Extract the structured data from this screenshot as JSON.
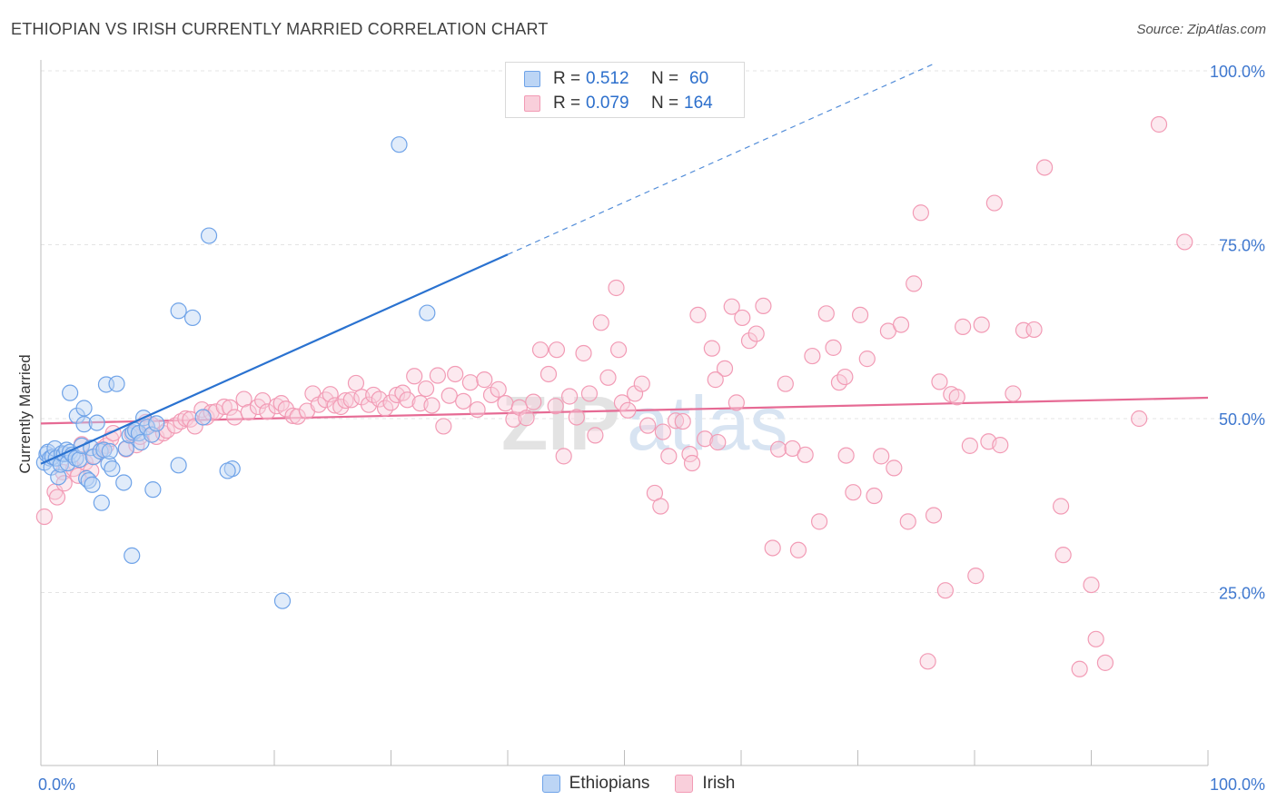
{
  "header": {
    "title": "ETHIOPIAN VS IRISH CURRENTLY MARRIED CORRELATION CHART",
    "source": "Source: ZipAtlas.com"
  },
  "watermark": "ZIPatlas",
  "stats_legend": {
    "rows": [
      {
        "r_label": "R =",
        "r_value": "0.512",
        "n_label": "N =",
        "n_value": "60",
        "color": "#6fa3e8"
      },
      {
        "r_label": "R =",
        "r_value": "0.079",
        "n_label": "N =",
        "n_value": "164",
        "color": "#f29bb5"
      }
    ],
    "value_color": "#2c6fcc"
  },
  "chart_data": {
    "type": "scatter",
    "xlabel": "",
    "ylabel": "Currently Married",
    "xlim": [
      0,
      100
    ],
    "ylim": [
      0,
      100
    ],
    "x_tick_labels": [
      {
        "value": 0,
        "label": "0.0%"
      },
      {
        "value": 100,
        "label": "100.0%"
      }
    ],
    "y_tick_labels": [
      {
        "value": 25,
        "label": "25.0%"
      },
      {
        "value": 50,
        "label": "50.0%"
      },
      {
        "value": 75,
        "label": "75.0%"
      },
      {
        "value": 100,
        "label": "100.0%"
      }
    ],
    "grid": true,
    "legend_position": "bottom-center",
    "series": [
      {
        "name": "Ethiopians",
        "color": "#6fa3e8",
        "fill": "#bcd5f5",
        "trend": {
          "x": [
            0,
            40
          ],
          "y": [
            43.5,
            73.6
          ],
          "color": "#2a72d0",
          "extension_to_x": 76.5,
          "extension_y": 101.0
        },
        "points": [
          [
            0.3,
            43.7
          ],
          [
            0.5,
            44.9
          ],
          [
            0.6,
            45.2
          ],
          [
            0.8,
            44.3
          ],
          [
            0.9,
            43.0
          ],
          [
            1.0,
            44.5
          ],
          [
            1.2,
            45.7
          ],
          [
            1.3,
            44.3
          ],
          [
            1.5,
            41.6
          ],
          [
            1.7,
            43.4
          ],
          [
            1.8,
            45.0
          ],
          [
            2.0,
            44.9
          ],
          [
            2.2,
            45.5
          ],
          [
            2.3,
            43.6
          ],
          [
            2.5,
            45.2
          ],
          [
            2.7,
            44.8
          ],
          [
            2.5,
            53.7
          ],
          [
            3.0,
            44.3
          ],
          [
            3.1,
            50.4
          ],
          [
            3.3,
            44.1
          ],
          [
            3.5,
            46.1
          ],
          [
            3.7,
            51.5
          ],
          [
            3.7,
            49.2
          ],
          [
            3.9,
            41.4
          ],
          [
            4.1,
            41.1
          ],
          [
            4.3,
            45.8
          ],
          [
            4.4,
            40.5
          ],
          [
            4.5,
            44.5
          ],
          [
            4.8,
            49.4
          ],
          [
            5.1,
            45.3
          ],
          [
            5.2,
            37.9
          ],
          [
            5.4,
            45.5
          ],
          [
            5.6,
            54.9
          ],
          [
            5.8,
            43.5
          ],
          [
            5.9,
            45.3
          ],
          [
            6.1,
            42.8
          ],
          [
            6.5,
            55.0
          ],
          [
            7.1,
            40.8
          ],
          [
            7.3,
            45.7
          ],
          [
            7.6,
            47.6
          ],
          [
            7.8,
            30.3
          ],
          [
            7.9,
            48.0
          ],
          [
            8.1,
            48.3
          ],
          [
            8.4,
            47.9
          ],
          [
            8.6,
            46.6
          ],
          [
            8.8,
            50.1
          ],
          [
            9.1,
            48.8
          ],
          [
            9.5,
            47.7
          ],
          [
            9.6,
            39.8
          ],
          [
            9.9,
            49.3
          ],
          [
            11.8,
            43.3
          ],
          [
            11.8,
            65.5
          ],
          [
            13.0,
            64.5
          ],
          [
            13.9,
            50.2
          ],
          [
            14.4,
            76.3
          ],
          [
            16.4,
            42.8
          ],
          [
            20.7,
            23.8
          ],
          [
            30.7,
            89.4
          ],
          [
            33.1,
            65.2
          ],
          [
            16.0,
            42.5
          ]
        ]
      },
      {
        "name": "Irish",
        "color": "#f29bb5",
        "fill": "#f9cfdb",
        "trend": {
          "x": [
            0,
            100
          ],
          "y": [
            49.3,
            53.0
          ],
          "color": "#e66a94"
        },
        "points": [
          [
            0.3,
            35.9
          ],
          [
            1.2,
            39.5
          ],
          [
            1.4,
            38.7
          ],
          [
            1.9,
            42.3
          ],
          [
            2.0,
            40.7
          ],
          [
            2.8,
            42.8
          ],
          [
            3.2,
            41.8
          ],
          [
            3.5,
            46.3
          ],
          [
            3.8,
            43.7
          ],
          [
            4.3,
            42.5
          ],
          [
            4.6,
            44.6
          ],
          [
            5.2,
            45.6
          ],
          [
            5.6,
            46.1
          ],
          [
            6.0,
            47.1
          ],
          [
            6.2,
            47.9
          ],
          [
            7.3,
            45.6
          ],
          [
            7.8,
            47.8
          ],
          [
            8.2,
            46.2
          ],
          [
            8.5,
            47.4
          ],
          [
            9.0,
            49.5
          ],
          [
            9.5,
            49.1
          ],
          [
            9.9,
            47.4
          ],
          [
            10.5,
            47.9
          ],
          [
            10.8,
            48.3
          ],
          [
            11.5,
            49.0
          ],
          [
            12.0,
            49.6
          ],
          [
            12.4,
            50.0
          ],
          [
            12.8,
            49.9
          ],
          [
            13.2,
            48.9
          ],
          [
            13.8,
            51.3
          ],
          [
            14.2,
            50.2
          ],
          [
            14.6,
            50.9
          ],
          [
            15.0,
            51.0
          ],
          [
            15.7,
            51.7
          ],
          [
            16.2,
            51.6
          ],
          [
            16.6,
            50.2
          ],
          [
            17.4,
            52.8
          ],
          [
            17.8,
            50.9
          ],
          [
            18.6,
            51.7
          ],
          [
            19.0,
            52.6
          ],
          [
            19.4,
            51.0
          ],
          [
            20.2,
            51.8
          ],
          [
            20.6,
            52.2
          ],
          [
            21.0,
            51.4
          ],
          [
            21.6,
            50.4
          ],
          [
            22.0,
            50.3
          ],
          [
            22.8,
            51.1
          ],
          [
            23.3,
            53.6
          ],
          [
            23.8,
            52.0
          ],
          [
            24.4,
            52.7
          ],
          [
            24.8,
            53.5
          ],
          [
            25.2,
            51.9
          ],
          [
            25.7,
            51.7
          ],
          [
            26.1,
            52.6
          ],
          [
            26.6,
            52.7
          ],
          [
            27.0,
            55.1
          ],
          [
            27.5,
            53.1
          ],
          [
            28.1,
            52.0
          ],
          [
            28.5,
            53.4
          ],
          [
            29.0,
            52.8
          ],
          [
            29.5,
            51.5
          ],
          [
            30.0,
            52.3
          ],
          [
            30.5,
            53.4
          ],
          [
            31.0,
            53.7
          ],
          [
            31.4,
            52.7
          ],
          [
            32.0,
            56.1
          ],
          [
            32.5,
            52.2
          ],
          [
            33.0,
            54.3
          ],
          [
            33.5,
            51.9
          ],
          [
            34.0,
            56.2
          ],
          [
            34.5,
            48.9
          ],
          [
            35.0,
            53.3
          ],
          [
            35.5,
            56.4
          ],
          [
            36.2,
            52.5
          ],
          [
            36.8,
            55.2
          ],
          [
            37.4,
            51.3
          ],
          [
            38.0,
            55.6
          ],
          [
            38.6,
            53.4
          ],
          [
            39.2,
            54.2
          ],
          [
            39.8,
            52.2
          ],
          [
            40.5,
            49.9
          ],
          [
            41.0,
            51.6
          ],
          [
            41.6,
            50.1
          ],
          [
            42.2,
            52.4
          ],
          [
            42.8,
            59.9
          ],
          [
            43.5,
            56.4
          ],
          [
            44.1,
            51.8
          ],
          [
            44.8,
            44.6
          ],
          [
            45.3,
            53.2
          ],
          [
            45.9,
            50.2
          ],
          [
            46.5,
            59.4
          ],
          [
            47.0,
            53.6
          ],
          [
            47.5,
            47.6
          ],
          [
            48.0,
            63.8
          ],
          [
            48.6,
            55.9
          ],
          [
            49.3,
            68.8
          ],
          [
            49.8,
            52.3
          ],
          [
            50.3,
            51.2
          ],
          [
            50.9,
            53.6
          ],
          [
            51.5,
            55.0
          ],
          [
            52.0,
            49.0
          ],
          [
            52.6,
            39.3
          ],
          [
            53.3,
            48.1
          ],
          [
            53.8,
            44.6
          ],
          [
            54.4,
            49.7
          ],
          [
            55.0,
            49.6
          ],
          [
            55.6,
            44.9
          ],
          [
            56.3,
            64.9
          ],
          [
            56.9,
            47.1
          ],
          [
            57.5,
            60.1
          ],
          [
            58.0,
            46.6
          ],
          [
            58.6,
            57.2
          ],
          [
            59.2,
            66.1
          ],
          [
            59.6,
            52.3
          ],
          [
            60.1,
            64.5
          ],
          [
            60.7,
            61.2
          ],
          [
            61.3,
            62.2
          ],
          [
            61.9,
            66.2
          ],
          [
            62.7,
            31.4
          ],
          [
            63.2,
            45.6
          ],
          [
            63.8,
            55.0
          ],
          [
            64.4,
            45.7
          ],
          [
            64.9,
            31.1
          ],
          [
            65.5,
            44.8
          ],
          [
            66.1,
            59.0
          ],
          [
            66.7,
            35.2
          ],
          [
            67.3,
            65.1
          ],
          [
            67.9,
            60.2
          ],
          [
            68.4,
            55.2
          ],
          [
            69.0,
            44.7
          ],
          [
            69.6,
            39.4
          ],
          [
            70.2,
            64.9
          ],
          [
            70.8,
            58.6
          ],
          [
            71.4,
            38.9
          ],
          [
            72.0,
            44.6
          ],
          [
            72.6,
            62.6
          ],
          [
            73.1,
            42.9
          ],
          [
            73.7,
            63.5
          ],
          [
            74.3,
            35.2
          ],
          [
            74.8,
            69.4
          ],
          [
            75.4,
            79.6
          ],
          [
            76.0,
            15.1
          ],
          [
            76.5,
            36.1
          ],
          [
            77.0,
            55.3
          ],
          [
            77.5,
            25.3
          ],
          [
            78.0,
            53.5
          ],
          [
            78.5,
            53.1
          ],
          [
            79.0,
            63.2
          ],
          [
            79.6,
            46.1
          ],
          [
            80.1,
            27.4
          ],
          [
            80.6,
            63.5
          ],
          [
            81.2,
            46.7
          ],
          [
            81.7,
            81.0
          ],
          [
            82.2,
            46.2
          ],
          [
            83.3,
            53.6
          ],
          [
            84.2,
            62.7
          ],
          [
            85.1,
            62.8
          ],
          [
            86.0,
            86.1
          ],
          [
            87.4,
            37.4
          ],
          [
            87.6,
            30.4
          ],
          [
            89.0,
            14.0
          ],
          [
            90.0,
            26.1
          ],
          [
            90.4,
            18.3
          ],
          [
            91.2,
            14.9
          ],
          [
            94.1,
            50.0
          ],
          [
            95.8,
            92.3
          ],
          [
            98.0,
            75.4
          ],
          [
            49.5,
            59.9
          ],
          [
            44.2,
            59.9
          ],
          [
            53.1,
            37.4
          ],
          [
            57.8,
            55.6
          ],
          [
            55.8,
            43.6
          ],
          [
            68.9,
            56.0
          ]
        ]
      }
    ]
  }
}
